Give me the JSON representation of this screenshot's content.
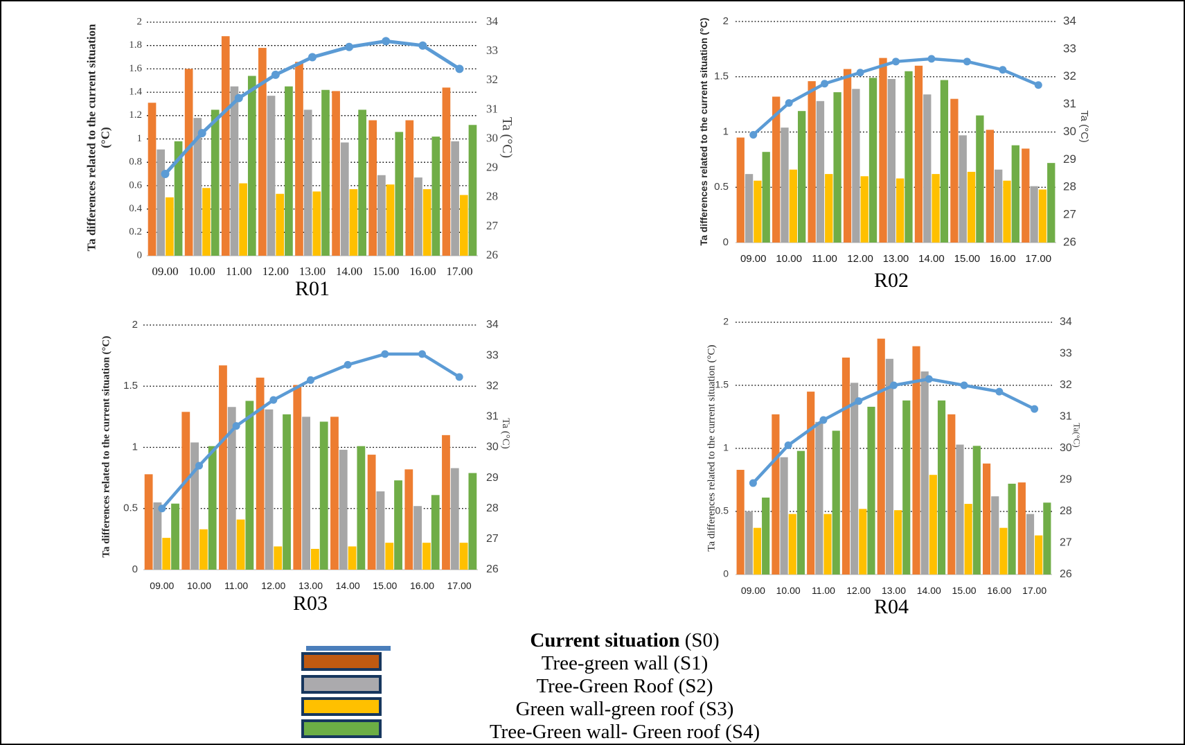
{
  "figure": {
    "background": "#ffffff",
    "border_color": "#000000"
  },
  "legend": {
    "swatch_border": "#17375E",
    "items": [
      {
        "name": "Current situation",
        "code": " (S0)",
        "swatch": "line",
        "color": "#4A7EBB",
        "bold_name": true
      },
      {
        "name": "Tree-green wall",
        "code": " (S1)",
        "swatch": "box",
        "color": "#C05A11",
        "bold_name": false
      },
      {
        "name": "Tree-Green Roof",
        "code": " (S2)",
        "swatch": "box",
        "color": "#ABAAAD",
        "bold_name": false
      },
      {
        "name": "Green wall-green roof",
        "code": " (S3)",
        "swatch": "box",
        "color": "#FFC000",
        "bold_name": false
      },
      {
        "name": "Tree-Green wall- Green roof",
        "code": " (S4)",
        "swatch": "box",
        "color": "#6CAE45",
        "bold_name": false
      }
    ]
  },
  "chart_data": [
    {
      "type": "bar+line",
      "title": "R01",
      "categories": [
        "09.00",
        "10.00",
        "11.00",
        "12.00",
        "13.00",
        "14.00",
        "15.00",
        "16.00",
        "17.00"
      ],
      "left_axis": {
        "min": 0,
        "max": 2,
        "step": 0.2,
        "label": "Ta differences related to the current situation",
        "label_line2": "(°C)"
      },
      "right_axis": {
        "min": 26,
        "max": 34,
        "step": 1,
        "label": "Ta (°C)"
      },
      "grid": true,
      "series": [
        {
          "name": "Tree-green wall (S1)",
          "type": "bar",
          "color": "#ED7D31",
          "values": [
            1.31,
            1.6,
            1.88,
            1.78,
            1.66,
            1.41,
            1.16,
            1.16,
            1.44
          ]
        },
        {
          "name": "Tree-Green Roof (S2)",
          "type": "bar",
          "color": "#A6A6A6",
          "values": [
            0.91,
            1.18,
            1.45,
            1.37,
            1.25,
            0.97,
            0.69,
            0.67,
            0.98
          ]
        },
        {
          "name": "Green wall-green roof (S3)",
          "type": "bar",
          "color": "#FFC000",
          "values": [
            0.5,
            0.58,
            0.62,
            0.53,
            0.55,
            0.57,
            0.61,
            0.57,
            0.52
          ]
        },
        {
          "name": "Tree-Green wall- Green roof (S4)",
          "type": "bar",
          "color": "#70AD47",
          "values": [
            0.98,
            1.25,
            1.54,
            1.45,
            1.42,
            1.25,
            1.06,
            1.02,
            1.12
          ]
        },
        {
          "name": "Current situation (S0)",
          "type": "line",
          "axis": "right",
          "color": "#5B9BD5",
          "values": [
            28.8,
            30.2,
            31.4,
            32.2,
            32.8,
            33.15,
            33.35,
            33.2,
            32.4
          ]
        }
      ]
    },
    {
      "type": "bar+line",
      "title": "R02",
      "categories": [
        "09.00",
        "10.00",
        "11.00",
        "12.00",
        "13.00",
        "14.00",
        "15.00",
        "16.00",
        "17.00"
      ],
      "left_axis": {
        "min": 0,
        "max": 2,
        "step": 0.5,
        "label": "Ta differences related to the current situation (°C)",
        "label_line2": ""
      },
      "right_axis": {
        "min": 26,
        "max": 34,
        "step": 1,
        "label": "Ta (°C)"
      },
      "grid": true,
      "series": [
        {
          "name": "Tree-green wall (S1)",
          "type": "bar",
          "color": "#ED7D31",
          "values": [
            0.95,
            1.32,
            1.46,
            1.57,
            1.67,
            1.6,
            1.3,
            1.02,
            0.85
          ]
        },
        {
          "name": "Tree-Green Roof (S2)",
          "type": "bar",
          "color": "#A6A6A6",
          "values": [
            0.62,
            1.04,
            1.28,
            1.39,
            1.48,
            1.34,
            0.97,
            0.66,
            0.51
          ]
        },
        {
          "name": "Green wall-green roof (S3)",
          "type": "bar",
          "color": "#FFC000",
          "values": [
            0.56,
            0.66,
            0.62,
            0.6,
            0.58,
            0.62,
            0.64,
            0.56,
            0.48
          ]
        },
        {
          "name": "Tree-Green wall- Green roof (S4)",
          "type": "bar",
          "color": "#70AD47",
          "values": [
            0.82,
            1.19,
            1.36,
            1.49,
            1.55,
            1.47,
            1.15,
            0.88,
            0.72
          ]
        },
        {
          "name": "Current situation (S0)",
          "type": "line",
          "axis": "right",
          "color": "#5B9BD5",
          "values": [
            29.9,
            31.05,
            31.75,
            32.15,
            32.55,
            32.65,
            32.55,
            32.25,
            31.7
          ]
        }
      ]
    },
    {
      "type": "bar+line",
      "title": "R03",
      "categories": [
        "09.00",
        "10.00",
        "11.00",
        "12.00",
        "13.00",
        "14.00",
        "15.00",
        "16.00",
        "17.00"
      ],
      "left_axis": {
        "min": 0,
        "max": 2,
        "step": 0.5,
        "label": "Ta differences related to the current situation (°C)",
        "label_line2": ""
      },
      "right_axis": {
        "min": 26,
        "max": 34,
        "step": 1,
        "label": "Ta (°C)"
      },
      "grid": true,
      "series": [
        {
          "name": "Tree-green wall (S1)",
          "type": "bar",
          "color": "#ED7D31",
          "values": [
            0.78,
            1.29,
            1.67,
            1.57,
            1.51,
            1.25,
            0.94,
            0.82,
            1.1
          ]
        },
        {
          "name": "Tree-Green Roof (S2)",
          "type": "bar",
          "color": "#A6A6A6",
          "values": [
            0.55,
            1.04,
            1.33,
            1.31,
            1.25,
            0.98,
            0.64,
            0.52,
            0.83
          ]
        },
        {
          "name": "Green wall-green roof (S3)",
          "type": "bar",
          "color": "#FFC000",
          "values": [
            0.26,
            0.33,
            0.41,
            0.19,
            0.17,
            0.19,
            0.22,
            0.22,
            0.22
          ]
        },
        {
          "name": "Tree-Green wall- Green roof (S4)",
          "type": "bar",
          "color": "#70AD47",
          "values": [
            0.54,
            1.01,
            1.38,
            1.27,
            1.21,
            1.01,
            0.73,
            0.61,
            0.79
          ]
        },
        {
          "name": "Current situation (S0)",
          "type": "line",
          "axis": "right",
          "color": "#5B9BD5",
          "values": [
            28.0,
            29.4,
            30.7,
            31.55,
            32.2,
            32.7,
            33.05,
            33.05,
            32.3
          ]
        }
      ]
    },
    {
      "type": "bar+line",
      "title": "R04",
      "categories": [
        "09.00",
        "10.00",
        "11.00",
        "12.00",
        "13.00",
        "14.00",
        "15.00",
        "16.00",
        "17.00"
      ],
      "left_axis": {
        "min": 0,
        "max": 2,
        "step": 0.5,
        "label": "Ta differences related to the current situation (°C)",
        "label_line2": ""
      },
      "right_axis": {
        "min": 26,
        "max": 34,
        "step": 1,
        "label": "Ta(°C)"
      },
      "grid": true,
      "series": [
        {
          "name": "Tree-green wall (S1)",
          "type": "bar",
          "color": "#ED7D31",
          "values": [
            0.83,
            1.27,
            1.45,
            1.72,
            1.87,
            1.81,
            1.27,
            0.88,
            0.73
          ]
        },
        {
          "name": "Tree-Green Roof (S2)",
          "type": "bar",
          "color": "#A6A6A6",
          "values": [
            0.5,
            0.93,
            1.21,
            1.52,
            1.71,
            1.61,
            1.03,
            0.62,
            0.48
          ]
        },
        {
          "name": "Green wall-green roof (S3)",
          "type": "bar",
          "color": "#FFC000",
          "values": [
            0.37,
            0.48,
            0.48,
            0.52,
            0.51,
            0.79,
            0.56,
            0.37,
            0.31
          ]
        },
        {
          "name": "Tree-Green wall- Green roof (S4)",
          "type": "bar",
          "color": "#70AD47",
          "values": [
            0.61,
            0.98,
            1.14,
            1.33,
            1.38,
            1.38,
            1.02,
            0.72,
            0.57
          ]
        },
        {
          "name": "Current situation (S0)",
          "type": "line",
          "axis": "right",
          "color": "#5B9BD5",
          "values": [
            28.9,
            30.1,
            30.9,
            31.5,
            32.0,
            32.2,
            32.0,
            31.8,
            31.25
          ]
        }
      ]
    }
  ]
}
